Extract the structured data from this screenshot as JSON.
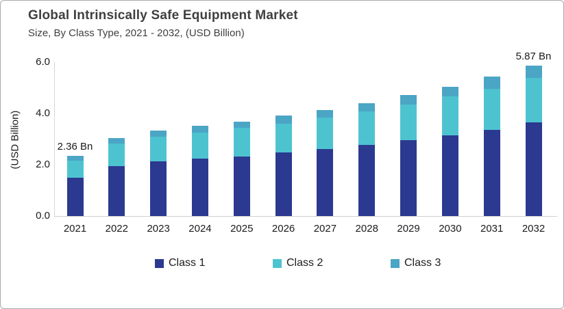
{
  "header": {
    "title": "Global Intrinsically Safe Equipment Market",
    "subtitle": "Size, By Class Type, 2021 - 2032, (USD Billion)"
  },
  "chart_data": {
    "type": "bar",
    "stacked": true,
    "title": "Global Intrinsically Safe Equipment Market Size, By Class Type, 2021 - 2032, (USD Billion)",
    "categories": [
      "2021",
      "2022",
      "2023",
      "2024",
      "2025",
      "2026",
      "2027",
      "2028",
      "2029",
      "2030",
      "2031",
      "2032"
    ],
    "series": [
      {
        "name": "Class 1",
        "color": "#2B3990",
        "values": [
          1.5,
          1.96,
          2.13,
          2.24,
          2.33,
          2.49,
          2.62,
          2.78,
          2.96,
          3.16,
          3.37,
          3.65
        ]
      },
      {
        "name": "Class 2",
        "color": "#4EC3D0",
        "values": [
          0.66,
          0.87,
          0.96,
          1.01,
          1.12,
          1.12,
          1.21,
          1.29,
          1.38,
          1.5,
          1.6,
          1.73
        ]
      },
      {
        "name": "Class 3",
        "color": "#4BA5C5",
        "values": [
          0.2,
          0.22,
          0.24,
          0.26,
          0.24,
          0.3,
          0.31,
          0.33,
          0.37,
          0.39,
          0.47,
          0.49
        ]
      }
    ],
    "totals": [
      2.36,
      3.05,
      3.33,
      3.51,
      3.69,
      3.91,
      4.14,
      4.4,
      4.71,
      5.05,
      5.44,
      5.87
    ],
    "xlabel": "",
    "ylabel": "(USD Billion)",
    "ylim": [
      0,
      6
    ],
    "yticks": [
      "0.0",
      "2.0",
      "4.0",
      "6.0"
    ],
    "ytick_values": [
      0,
      2,
      4,
      6
    ],
    "grid": false,
    "legend_position": "bottom",
    "annotations": [
      {
        "category": "2021",
        "text": "2.36 Bn"
      },
      {
        "category": "2032",
        "text": "5.87 Bn"
      }
    ]
  }
}
